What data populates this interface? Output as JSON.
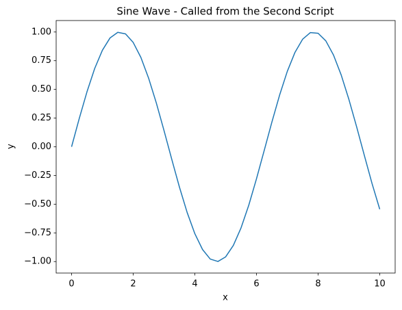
{
  "chart_data": {
    "type": "line",
    "title": "Sine Wave - Called from the Second Script",
    "xlabel": "x",
    "ylabel": "y",
    "color": "#1f77b4",
    "x": [
      0,
      0.25,
      0.5,
      0.75,
      1,
      1.25,
      1.5,
      1.75,
      2,
      2.25,
      2.5,
      2.75,
      3,
      3.25,
      3.5,
      3.75,
      4,
      4.25,
      4.5,
      4.75,
      5,
      5.25,
      5.5,
      5.75,
      6,
      6.25,
      6.5,
      6.75,
      7,
      7.25,
      7.5,
      7.75,
      8,
      8.25,
      8.5,
      8.75,
      9,
      9.25,
      9.5,
      9.75,
      10
    ],
    "values": [
      0,
      0.247,
      0.479,
      0.682,
      0.841,
      0.949,
      0.997,
      0.984,
      0.909,
      0.778,
      0.598,
      0.382,
      0.141,
      -0.108,
      -0.351,
      -0.572,
      -0.757,
      -0.895,
      -0.978,
      -0.999,
      -0.959,
      -0.859,
      -0.706,
      -0.509,
      -0.279,
      -0.033,
      0.215,
      0.45,
      0.657,
      0.823,
      0.938,
      0.995,
      0.989,
      0.923,
      0.799,
      0.625,
      0.412,
      0.174,
      -0.075,
      -0.32,
      -0.544
    ],
    "xlim": [
      -0.5,
      10.5
    ],
    "xticks": [
      0,
      2,
      4,
      6,
      8,
      10
    ],
    "ylim": [
      -1.1,
      1.1
    ],
    "yticks": [
      {
        "value": -1,
        "label": "−1.00"
      },
      {
        "value": -0.75,
        "label": "−0.75"
      },
      {
        "value": -0.5,
        "label": "−0.50"
      },
      {
        "value": -0.25,
        "label": "−0.25"
      },
      {
        "value": 0,
        "label": "0.00"
      },
      {
        "value": 0.25,
        "label": "0.25"
      },
      {
        "value": 0.5,
        "label": "0.50"
      },
      {
        "value": 0.75,
        "label": "0.75"
      },
      {
        "value": 1,
        "label": "1.00"
      }
    ],
    "grid": false
  }
}
